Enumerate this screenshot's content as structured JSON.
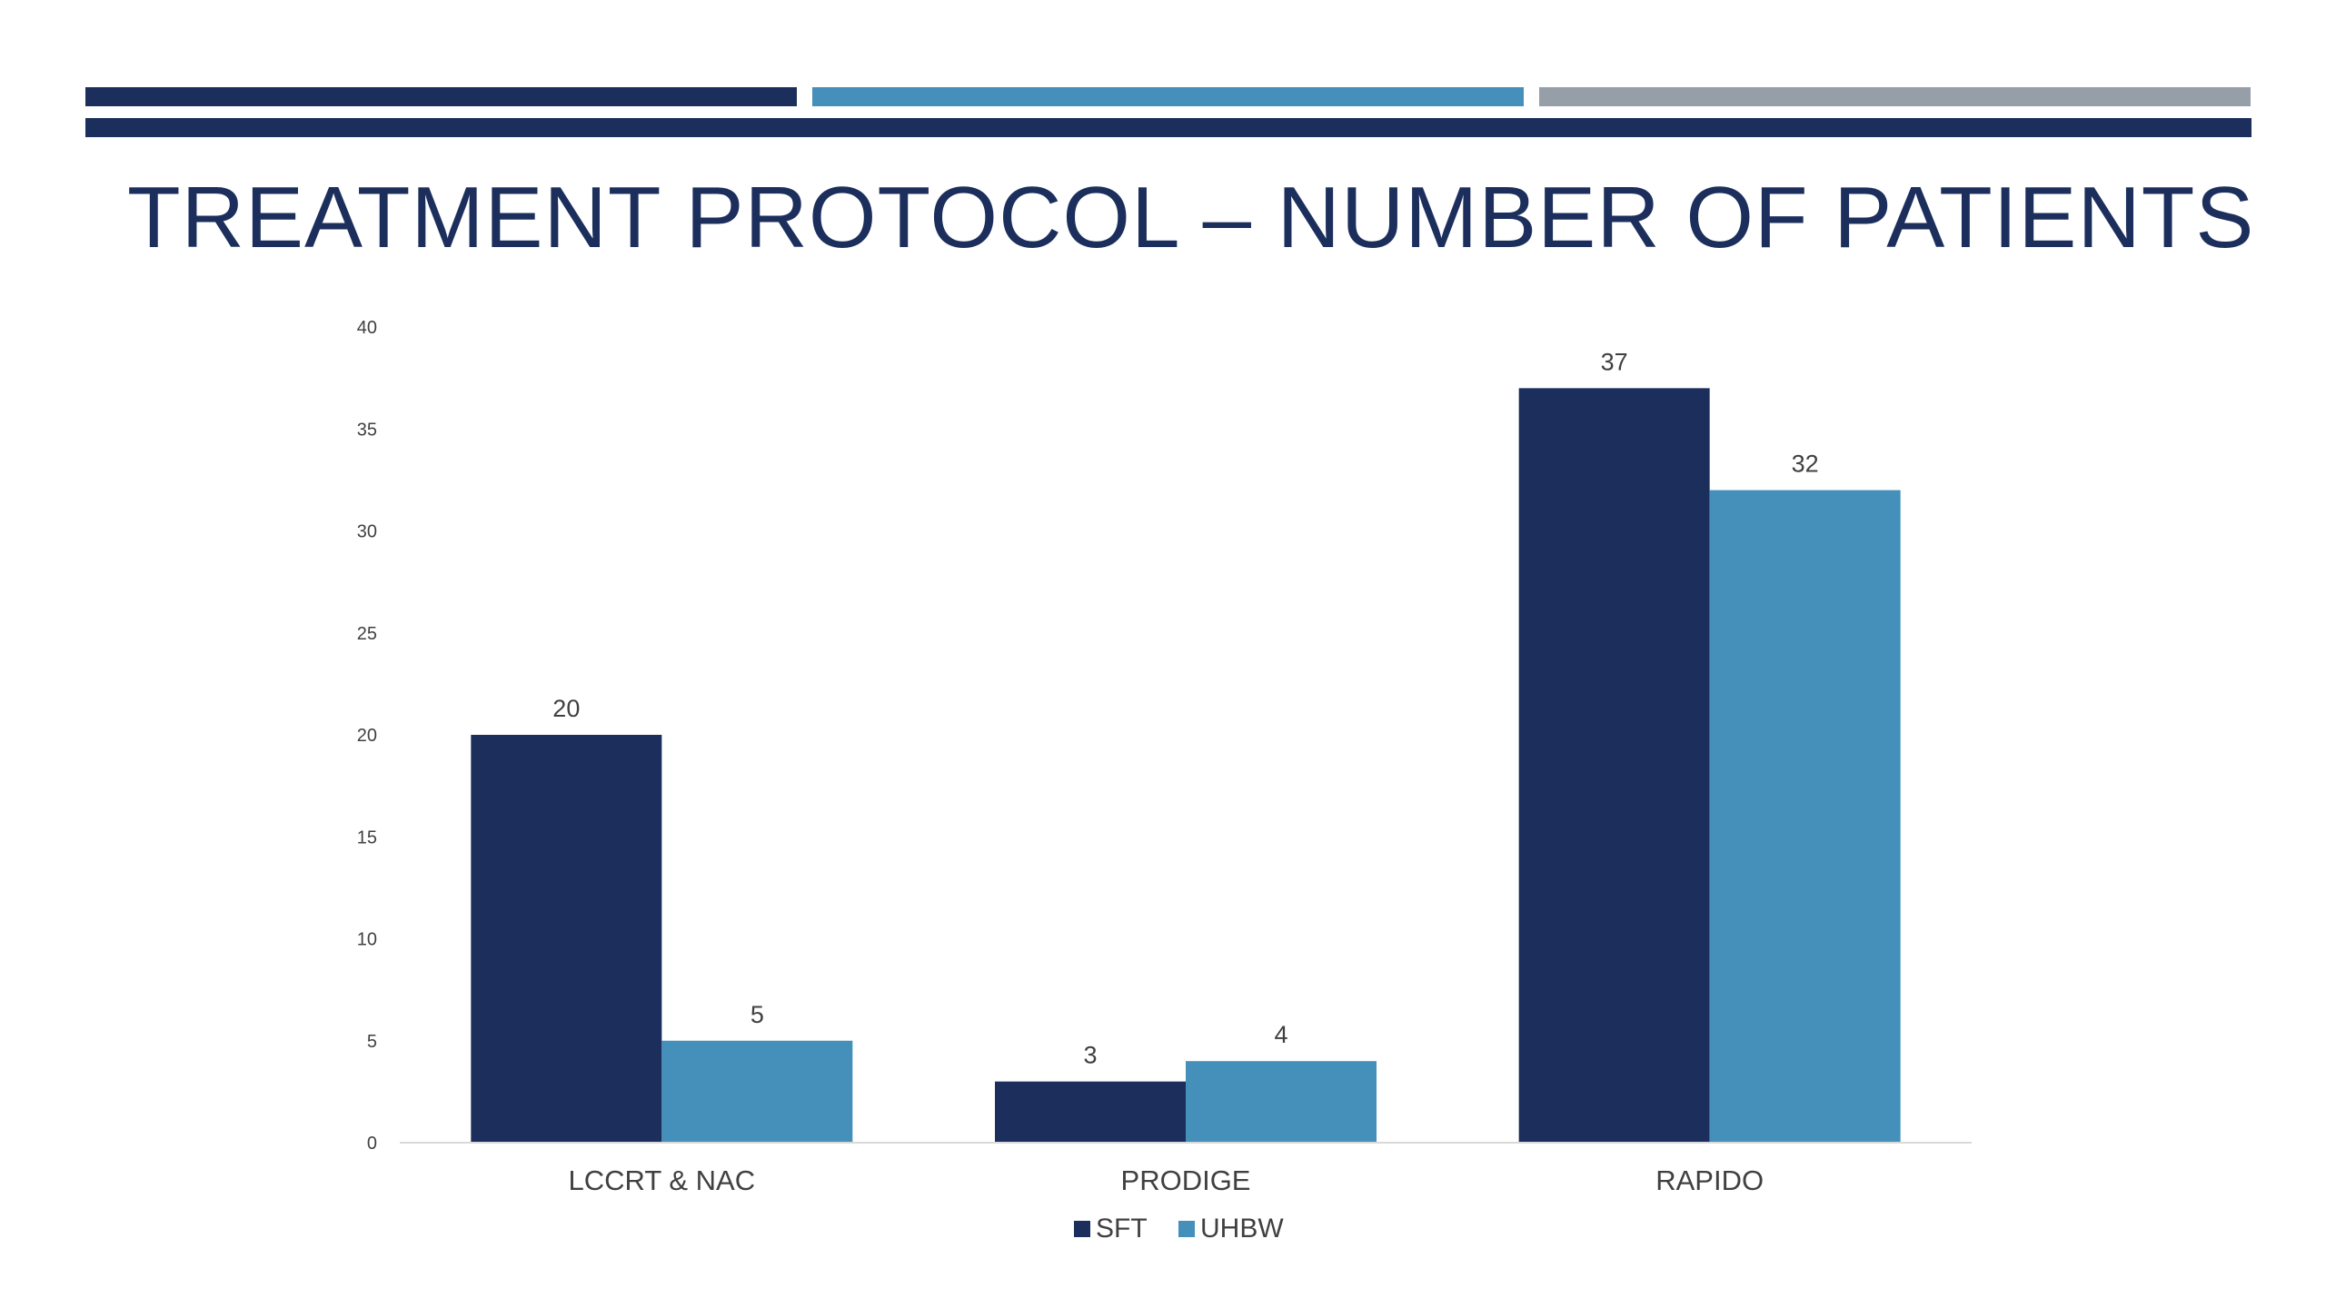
{
  "slide": {
    "title": "TREATMENT PROTOCOL – NUMBER OF PATIENTS"
  },
  "theme": {
    "navy": "#1c2f5c",
    "blue": "#4590bb",
    "gray": "#969fa8",
    "axis_text": "#404040"
  },
  "chart_data": {
    "type": "bar",
    "categories": [
      "LCCRT & NAC",
      "PRODIGE",
      "RAPIDO"
    ],
    "series": [
      {
        "name": "SFT",
        "values": [
          20,
          3,
          37
        ],
        "color": "#1c2f5c"
      },
      {
        "name": "UHBW",
        "values": [
          5,
          4,
          32
        ],
        "color": "#4590bb"
      }
    ],
    "title": "",
    "xlabel": "",
    "ylabel": "",
    "ylim": [
      0,
      40
    ],
    "yticks": [
      0,
      5,
      10,
      15,
      20,
      25,
      30,
      35,
      40
    ],
    "data_labels": true,
    "grid": false,
    "legend_position": "bottom"
  }
}
